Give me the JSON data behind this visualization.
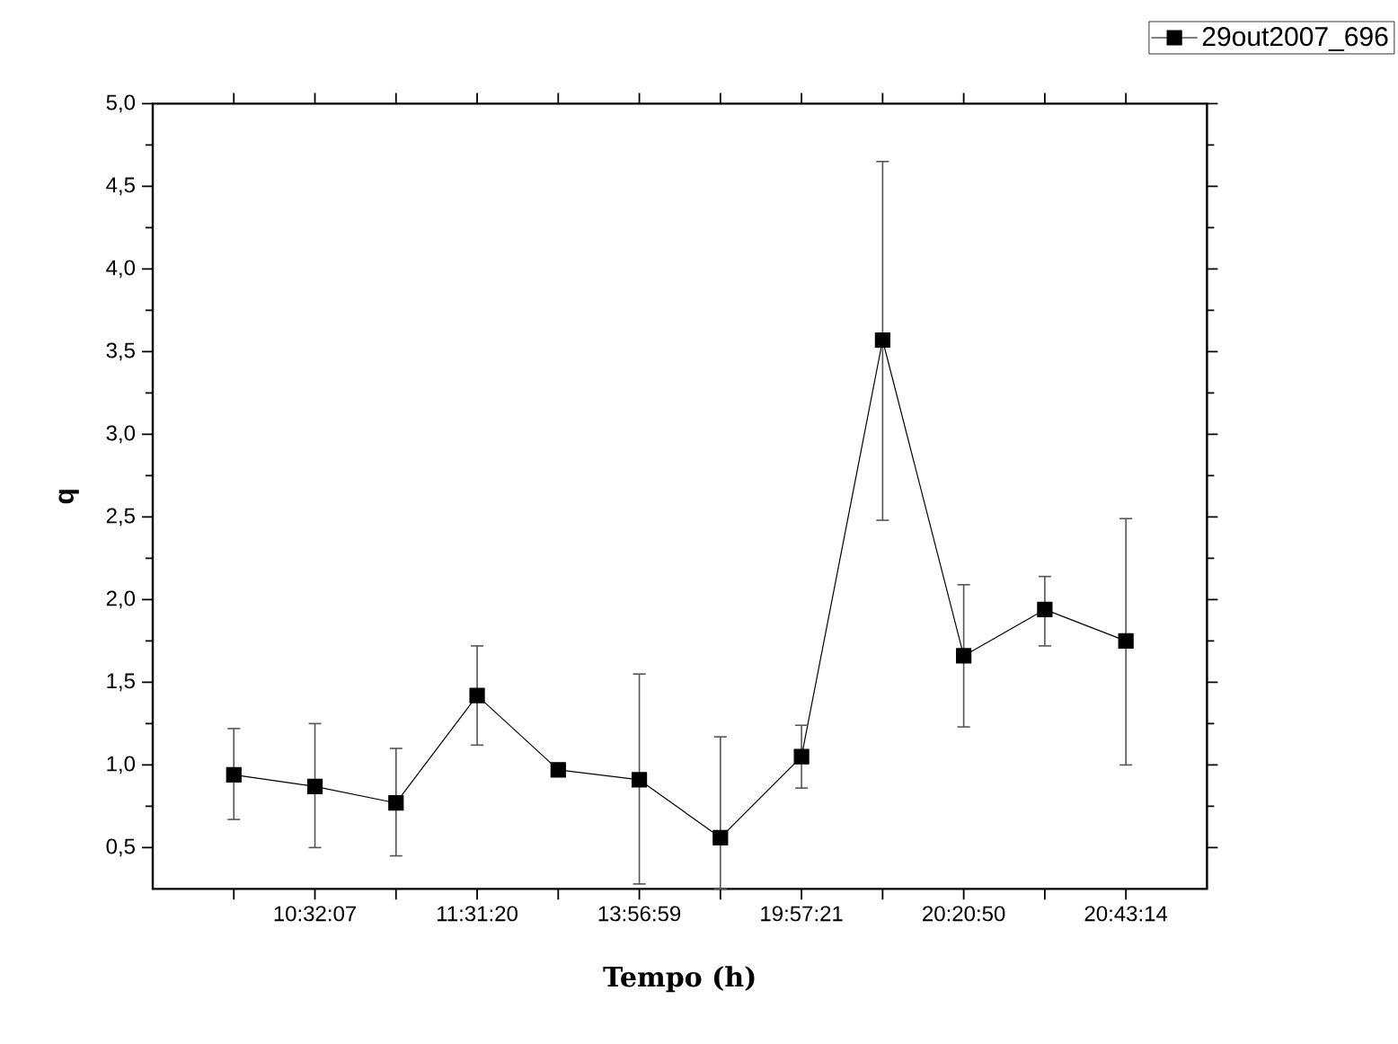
{
  "chart_data": {
    "type": "line",
    "xlabel": "Tempo (h)",
    "ylabel": "q",
    "categories": [
      null,
      "10:32:07",
      null,
      "11:31:20",
      null,
      "13:56:59",
      null,
      "19:57:21",
      null,
      "20:20:50",
      null,
      "20:43:14"
    ],
    "series": [
      {
        "name": "29out2007_696",
        "color": "#000000",
        "values": [
          0.94,
          0.87,
          0.77,
          1.42,
          0.97,
          0.91,
          0.56,
          1.05,
          3.57,
          1.66,
          1.94,
          1.75
        ],
        "errors": [
          [
            0.67,
            1.22
          ],
          [
            0.5,
            1.25
          ],
          [
            0.45,
            1.1
          ],
          [
            1.12,
            1.72
          ],
          null,
          [
            0.28,
            1.55
          ],
          [
            0.25,
            1.17
          ],
          [
            0.86,
            1.24
          ],
          [
            2.48,
            4.65
          ],
          [
            1.23,
            2.09
          ],
          [
            1.72,
            2.14
          ],
          [
            1.0,
            2.49
          ]
        ]
      }
    ],
    "ylim": [
      0.25,
      5.0
    ],
    "yticks": [
      {
        "value": 0.5,
        "label": "0,5"
      },
      {
        "value": 1.0,
        "label": "1,0"
      },
      {
        "value": 1.5,
        "label": "1,5"
      },
      {
        "value": 2.0,
        "label": "2,0"
      },
      {
        "value": 2.5,
        "label": "2,5"
      },
      {
        "value": 3.0,
        "label": "3,0"
      },
      {
        "value": 3.5,
        "label": "3,5"
      },
      {
        "value": 4.0,
        "label": "4,0"
      },
      {
        "value": 4.5,
        "label": "4,5"
      },
      {
        "value": 5.0,
        "label": "5,0"
      }
    ],
    "grid": false,
    "legend": "top right",
    "marker": "square",
    "line_style": "solid"
  }
}
